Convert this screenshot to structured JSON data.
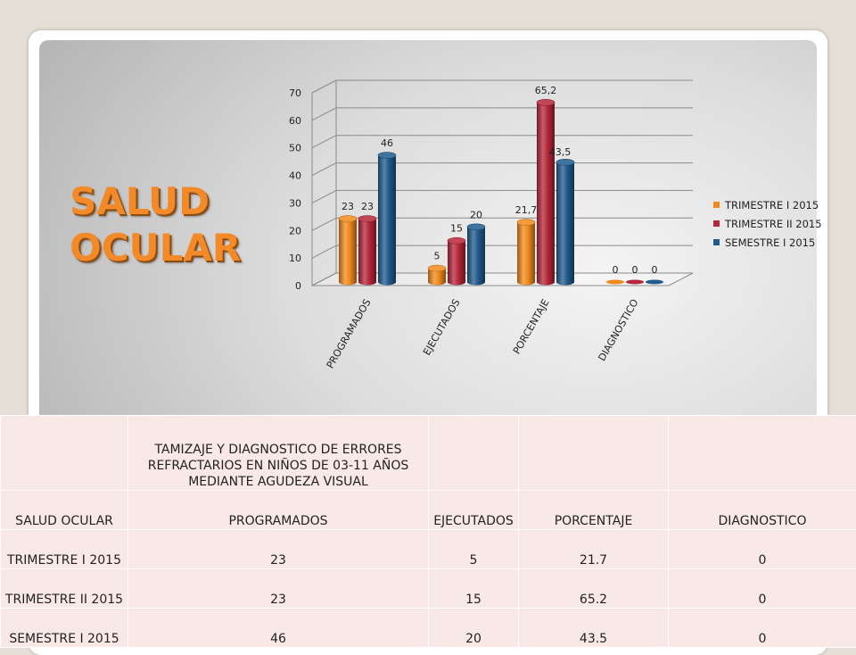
{
  "slide_title": "SALUD OCULAR",
  "chart_data": {
    "type": "bar",
    "categories": [
      "PROGRAMADOS",
      "EJECUTADOS",
      "PORCENTAJE",
      "DIAGNOSTICO"
    ],
    "series": [
      {
        "name": "TRIMESTRE I 2015",
        "values": [
          23,
          5,
          21.7,
          0
        ],
        "labels": [
          "23",
          "5",
          "21,7",
          "0"
        ],
        "color": "#f08a1c"
      },
      {
        "name": "TRIMESTRE II 2015",
        "values": [
          23,
          15,
          65.2,
          0
        ],
        "labels": [
          "23",
          "15",
          "65,2",
          "0"
        ],
        "color": "#b5263a"
      },
      {
        "name": "SEMESTRE I 2015",
        "values": [
          46,
          20,
          43.5,
          0
        ],
        "labels": [
          "46",
          "20",
          "43,5",
          "0"
        ],
        "color": "#1f5b8c"
      }
    ],
    "yticks": [
      "0",
      "10",
      "20",
      "30",
      "40",
      "50",
      "60",
      "70"
    ],
    "ylim": [
      0,
      70
    ],
    "grid": true,
    "style": "3d-cylinder",
    "legend": "right"
  },
  "table": {
    "heading": "TAMIZAJE Y DIAGNOSTICO DE ERRORES REFRACTARIOS EN NIÑOS DE 03-11 AÑOS MEDIANTE AGUDEZA VISUAL",
    "columns": [
      "SALUD OCULAR",
      "PROGRAMADOS",
      "EJECUTADOS",
      "PORCENTAJE",
      "DIAGNOSTICO"
    ],
    "rows": [
      {
        "label": "TRIMESTRE I 2015",
        "cells": [
          "23",
          "5",
          "21.7",
          "0"
        ]
      },
      {
        "label": "TRIMESTRE II 2015",
        "cells": [
          "23",
          "15",
          "65.2",
          "0"
        ]
      },
      {
        "label": "SEMESTRE I 2015",
        "cells": [
          "46",
          "20",
          "43.5",
          "0"
        ]
      }
    ]
  }
}
